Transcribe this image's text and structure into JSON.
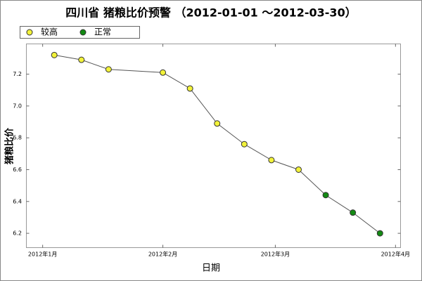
{
  "chart_data": {
    "type": "line",
    "title": "四川省 猪粮比价预警 （2012-01-01 ～2012-03-30）",
    "x_label": "日期",
    "y_label": "猪粮比价",
    "legend": [
      {
        "name": "较高",
        "color": "#f2f23a"
      },
      {
        "name": "正常",
        "color": "#138a13"
      }
    ],
    "x": [
      3,
      10,
      17,
      31,
      38,
      45,
      52,
      59,
      66,
      73,
      80,
      87
    ],
    "values": [
      7.32,
      7.29,
      7.23,
      7.21,
      7.11,
      6.89,
      6.76,
      6.66,
      6.6,
      6.44,
      6.33,
      6.2
    ],
    "point_colors": [
      "#f2f23a",
      "#f2f23a",
      "#f2f23a",
      "#f2f23a",
      "#f2f23a",
      "#f2f23a",
      "#f2f23a",
      "#f2f23a",
      "#f2f23a",
      "#138a13",
      "#138a13",
      "#138a13"
    ],
    "line_color": "#555555",
    "xlim": [
      -4.2,
      92.3
    ],
    "xticks": [
      {
        "value": 0,
        "label": "2012年1月"
      },
      {
        "value": 31,
        "label": "2012年2月"
      },
      {
        "value": 60,
        "label": "2012年3月"
      },
      {
        "value": 91,
        "label": "2012年4月"
      }
    ],
    "ylim": [
      6.11,
      7.39
    ],
    "yticks": [
      6.2,
      6.4,
      6.6,
      6.8,
      {
        "value": 7,
        "label": "7.0"
      },
      7.2
    ],
    "grid": false
  }
}
